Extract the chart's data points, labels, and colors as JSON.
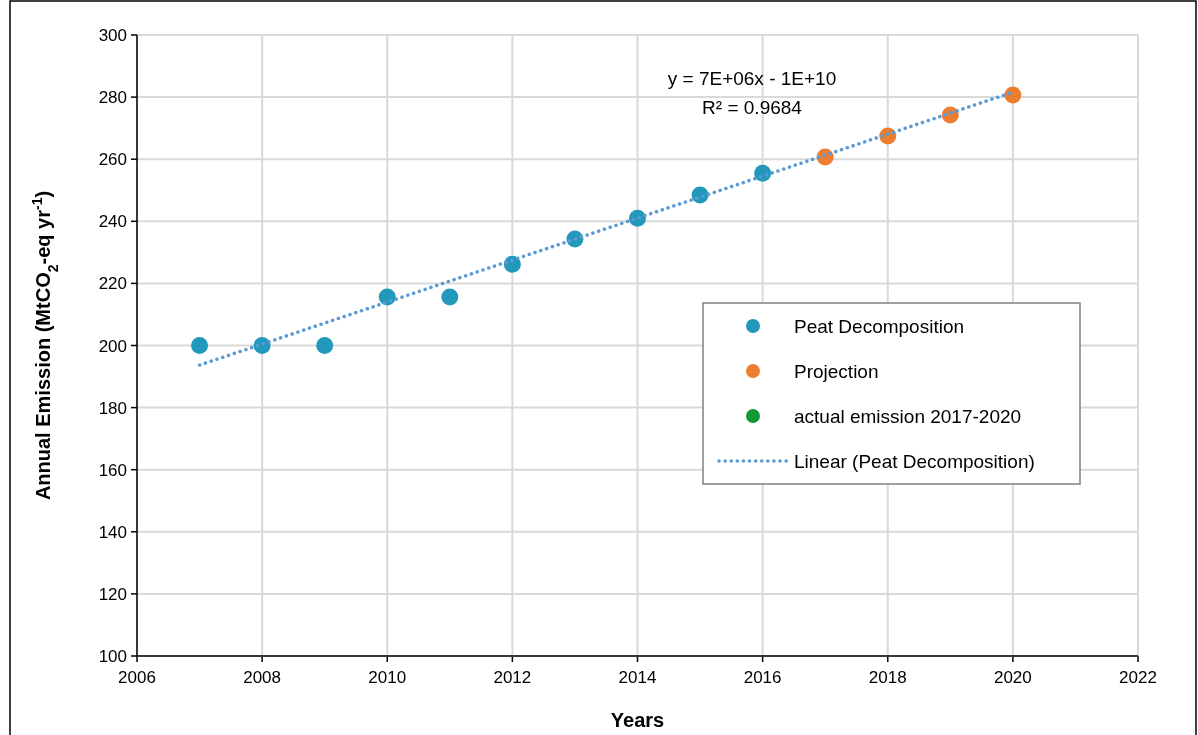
{
  "chart_data": {
    "type": "scatter",
    "xlabel": "Years",
    "ylabel": "Annual Emission (MtCO$_{2}$-eq yr$^{-1}$)",
    "xlim": [
      2006,
      2022
    ],
    "xticks": [
      2006,
      2008,
      2010,
      2012,
      2014,
      2016,
      2018,
      2020,
      2022
    ],
    "ylim": [
      100,
      300
    ],
    "yticks": [
      100,
      120,
      140,
      160,
      180,
      200,
      220,
      240,
      260,
      280,
      300
    ],
    "grid": true,
    "legend": "right",
    "marker": "circle",
    "annotations": [
      "y = 7E+06x - 1E+10",
      "R² = 0.9684"
    ],
    "series": [
      {
        "name": "Peat Decomposition",
        "color": "#2299bb",
        "x": [
          2007,
          2008,
          2009,
          2010,
          2011,
          2012,
          2013,
          2014,
          2015,
          2016
        ],
        "values": [
          200,
          200,
          200,
          215.6,
          215.6,
          226.2,
          234.3,
          241,
          248.5,
          255.5
        ]
      },
      {
        "name": "Projection",
        "color": "#ed7d31",
        "x": [
          2017,
          2018,
          2019,
          2020
        ],
        "values": [
          260.7,
          267.5,
          274.2,
          280.7
        ]
      },
      {
        "name": "actual emission 2017-2020",
        "color": "#119933"
      },
      {
        "name": "Linear (Peat Decomposition)",
        "type": "line",
        "line_style": "dotted",
        "marker": "none",
        "color": "#5b9bd5",
        "x": [
          2007,
          2020
        ],
        "values": [
          193.7,
          281.6
        ]
      }
    ]
  }
}
